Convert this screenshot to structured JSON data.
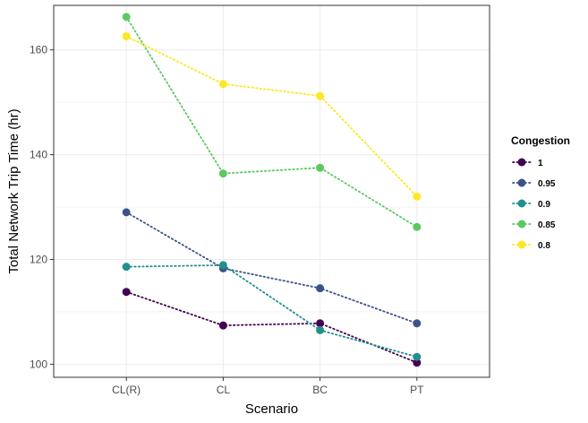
{
  "chart_data": {
    "type": "line",
    "xlabel": "Scenario",
    "ylabel": "Total Network Trip Time (hr)",
    "categories": [
      "CL(R)",
      "CL",
      "BC",
      "PT"
    ],
    "ylim": [
      97.5,
      168.5
    ],
    "yticks": [
      100,
      120,
      140,
      160
    ],
    "grid": true,
    "line_style": "dotted",
    "legend": {
      "title": "Congestion",
      "position": "right"
    },
    "series": [
      {
        "name": "1",
        "color": "#440154",
        "values": [
          113.8,
          107.4,
          107.8,
          100.3
        ]
      },
      {
        "name": "0.95",
        "color": "#3B528B",
        "values": [
          129.0,
          118.3,
          114.5,
          107.8
        ]
      },
      {
        "name": "0.9",
        "color": "#21908C",
        "values": [
          118.6,
          118.9,
          106.5,
          101.4
        ]
      },
      {
        "name": "0.85",
        "color": "#5DC863",
        "values": [
          166.3,
          136.4,
          137.5,
          126.2
        ]
      },
      {
        "name": "0.8",
        "color": "#FDE725",
        "values": [
          162.6,
          153.5,
          151.2,
          132.0
        ]
      }
    ]
  }
}
